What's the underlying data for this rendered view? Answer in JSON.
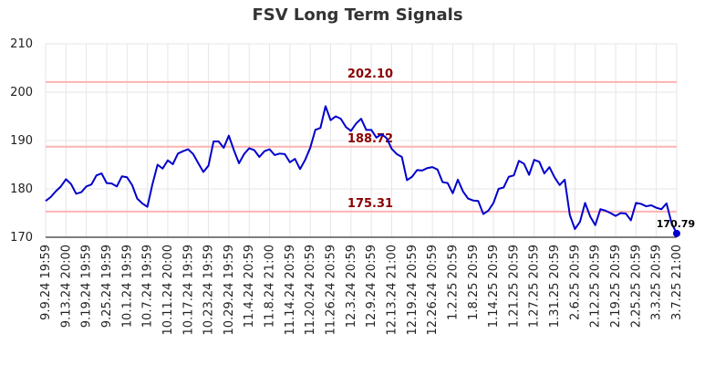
{
  "chart_data": {
    "type": "line",
    "title": "FSV Long Term Signals",
    "xlabel": "",
    "ylabel": "",
    "ylim": [
      170,
      210
    ],
    "yticks": [
      170,
      180,
      190,
      200,
      210
    ],
    "grid": true,
    "x_tick_labels": [
      "9.9.24 19:59",
      "9.13.24 20:00",
      "9.19.24 19:59",
      "9.25.24 19:59",
      "10.1.24 19:59",
      "10.7.24 19:59",
      "10.11.24 20:00",
      "10.17.24 19:59",
      "10.23.24 19:59",
      "10.29.24 19:59",
      "11.4.24 20:59",
      "11.8.24 21:00",
      "11.14.24 20:59",
      "11.20.24 20:59",
      "11.26.24 20:59",
      "12.3.24 20:59",
      "12.9.24 20:59",
      "12.13.24 21:00",
      "12.19.24 20:59",
      "12.26.24 20:59",
      "1.2.25 20:59",
      "1.8.25 20:59",
      "1.14.25 20:59",
      "1.21.25 20:59",
      "1.27.25 20:59",
      "1.31.25 20:59",
      "2.6.25 20:59",
      "2.12.25 20:59",
      "2.19.25 20:59",
      "2.25.25 20:59",
      "3.3.25 20:59",
      "3.7.25 21:00"
    ],
    "series": [
      {
        "color": "#0000cc",
        "values": [
          177.5,
          178.3,
          179.5,
          180.5,
          182.0,
          181.0,
          179.0,
          179.3,
          180.5,
          180.9,
          182.8,
          183.2,
          181.2,
          181.1,
          180.5,
          182.6,
          182.4,
          180.8,
          178.0,
          177.0,
          176.3,
          181.0,
          185.0,
          184.2,
          185.9,
          185.1,
          187.3,
          187.8,
          188.2,
          187.2,
          185.3,
          183.5,
          184.8,
          189.8,
          189.8,
          188.5,
          191.0,
          188.0,
          185.3,
          187.2,
          188.4,
          188.0,
          186.6,
          187.8,
          188.2,
          187.0,
          187.3,
          187.2,
          185.5,
          186.2,
          184.1,
          186.0,
          188.5,
          192.2,
          192.6,
          197.1,
          194.2,
          195.0,
          194.5,
          192.8,
          192.0,
          193.5,
          194.5,
          192.2,
          192.2,
          190.6,
          191.3,
          190.5,
          188.3,
          187.2,
          186.6,
          181.8,
          182.5,
          183.9,
          183.8,
          184.3,
          184.5,
          184.0,
          181.4,
          181.2,
          179.1,
          181.9,
          179.5,
          178.0,
          177.6,
          177.5,
          174.8,
          175.5,
          177.1,
          180.0,
          180.3,
          182.5,
          182.8,
          185.8,
          185.2,
          182.9,
          186.0,
          185.6,
          183.2,
          184.5,
          182.4,
          180.8,
          181.9,
          174.6,
          171.7,
          173.2,
          177.1,
          174.3,
          172.5,
          175.8,
          175.5,
          175.0,
          174.4,
          175.0,
          174.9,
          173.5,
          177.1,
          176.9,
          176.4,
          176.6,
          176.1,
          175.8,
          177.0,
          172.9,
          170.79
        ]
      }
    ],
    "horizontal_levels": [
      {
        "value": 202.1,
        "label": "202.10",
        "color": "#ffb3b3"
      },
      {
        "value": 188.72,
        "label": "188.72",
        "color": "#ffb3b3"
      },
      {
        "value": 175.31,
        "label": "175.31",
        "color": "#ffb3b3"
      }
    ],
    "last_value": {
      "value": 170.79,
      "label": "170.79"
    }
  }
}
